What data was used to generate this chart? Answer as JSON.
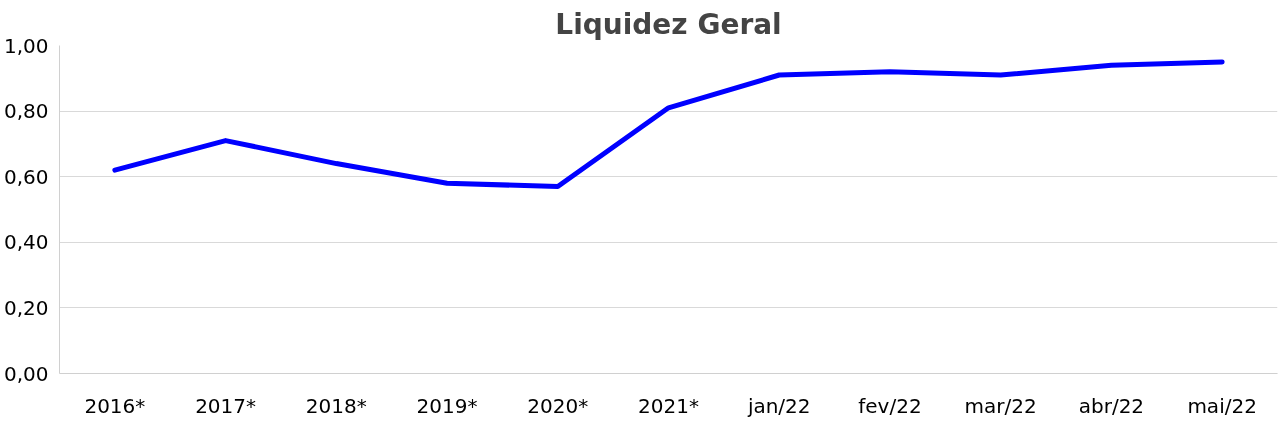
{
  "chart_data": {
    "type": "line",
    "title": "Liquidez Geral",
    "categories": [
      "2016*",
      "2017*",
      "2018*",
      "2019*",
      "2020*",
      "2021*",
      "jan/22",
      "fev/22",
      "mar/22",
      "abr/22",
      "mai/22"
    ],
    "series": [
      {
        "color": "#0000ff",
        "values": [
          0.62,
          0.71,
          0.64,
          0.58,
          0.57,
          0.81,
          0.91,
          0.92,
          0.91,
          0.94,
          0.95
        ]
      }
    ],
    "ylim": [
      0,
      1
    ],
    "yticks": [
      {
        "value": 0,
        "label": "0,00"
      },
      {
        "value": 0.2,
        "label": "0,20"
      },
      {
        "value": 0.4,
        "label": "0,40"
      },
      {
        "value": 0.6,
        "label": "0,60"
      },
      {
        "value": 0.8,
        "label": "0,80"
      },
      {
        "value": 1,
        "label": "1,00"
      }
    ],
    "grid": "y",
    "line_style": "solid",
    "marker": "none"
  }
}
